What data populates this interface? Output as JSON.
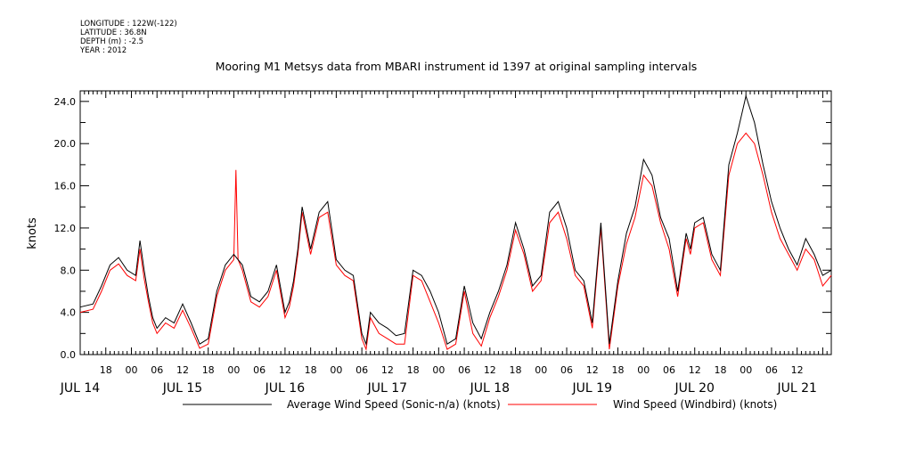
{
  "meta": {
    "longitude": "LONGITUDE : 122W(-122)",
    "latitude": "LATITUDE : 36.8N",
    "depth": "DEPTH (m) : -2.5",
    "year": "YEAR : 2012"
  },
  "colors": {
    "series1": "#000000",
    "series2": "#ff0000"
  },
  "chart_data": {
    "type": "line",
    "title": "Mooring M1 Metsys data from MBARI instrument id 1397 at original sampling intervals",
    "ylabel": "knots",
    "xlabel": "",
    "ylim": [
      0,
      25
    ],
    "xlim_hours": [
      12,
      188
    ],
    "grid": false,
    "legend_position": "bottom",
    "y_ticks": [
      "0.0",
      "4.0",
      "8.0",
      "12.0",
      "16.0",
      "20.0",
      "24.0"
    ],
    "x_hour_tick_labels": [
      "18",
      "00",
      "06",
      "12",
      "18",
      "00",
      "06",
      "12",
      "18",
      "00",
      "06",
      "12",
      "18",
      "00",
      "06",
      "12",
      "18",
      "00",
      "06",
      "12",
      "18",
      "00",
      "06",
      "12",
      "18",
      "00",
      "06",
      "12"
    ],
    "x_day_labels": [
      "JUL 14",
      "JUL 15",
      "JUL 16",
      "JUL 17",
      "JUL 18",
      "JUL 19",
      "JUL 20",
      "JUL 21"
    ],
    "series": [
      {
        "name": "Average Wind Speed (Sonic-n/a) (knots)",
        "x_hours": [
          12,
          15,
          17,
          19,
          21,
          23,
          25,
          26,
          27,
          28,
          29,
          30,
          32,
          34,
          36,
          38,
          40,
          42,
          44,
          46,
          48,
          50,
          52,
          54,
          56,
          58,
          60,
          61,
          62,
          63,
          64,
          66,
          68,
          70,
          72,
          74,
          76,
          78,
          79,
          80,
          82,
          84,
          86,
          88,
          90,
          92,
          94,
          96,
          98,
          100,
          102,
          104,
          106,
          108,
          110,
          112,
          114,
          116,
          118,
          120,
          122,
          124,
          126,
          128,
          130,
          132,
          134,
          136,
          138,
          140,
          142,
          144,
          146,
          148,
          150,
          152,
          154,
          155,
          156,
          158,
          160,
          162,
          164,
          166,
          168,
          170,
          172,
          174,
          176,
          178,
          180,
          182,
          184,
          186,
          188
        ],
        "y": [
          4.5,
          4.8,
          6.5,
          8.5,
          9.2,
          8.0,
          7.5,
          10.8,
          8.0,
          5.5,
          3.5,
          2.5,
          3.5,
          3.0,
          4.8,
          3.0,
          1.0,
          1.5,
          6.0,
          8.5,
          9.5,
          8.5,
          5.5,
          5.0,
          6.0,
          8.5,
          4.0,
          5.0,
          7.0,
          10.0,
          14.0,
          10.0,
          13.5,
          14.5,
          9.0,
          8.0,
          7.5,
          2.0,
          1.0,
          4.0,
          3.0,
          2.5,
          1.8,
          2.0,
          8.0,
          7.5,
          6.0,
          4.0,
          1.0,
          1.5,
          6.5,
          3.0,
          1.5,
          4.0,
          6.0,
          8.5,
          12.5,
          10.0,
          6.5,
          7.5,
          13.5,
          14.5,
          12.0,
          8.0,
          7.0,
          3.0,
          12.5,
          1.0,
          7.0,
          11.5,
          14.0,
          18.5,
          17.0,
          13.0,
          11.0,
          6.0,
          11.5,
          10.0,
          12.5,
          13.0,
          9.5,
          8.0,
          18.0,
          21.0,
          24.5,
          22.0,
          18.0,
          14.5,
          12.0,
          10.0,
          8.5,
          11.0,
          9.5,
          7.5,
          8.0
        ]
      },
      {
        "name": "Wind Speed (Windbird) (knots)",
        "x_hours": [
          12,
          15,
          17,
          19,
          21,
          23,
          25,
          26,
          27,
          28,
          29,
          30,
          32,
          34,
          36,
          38,
          40,
          42,
          44,
          46,
          48,
          48.5,
          49,
          50,
          52,
          54,
          56,
          58,
          60,
          61,
          62,
          63,
          64,
          66,
          68,
          70,
          72,
          74,
          76,
          78,
          79,
          80,
          82,
          84,
          86,
          88,
          90,
          92,
          94,
          96,
          98,
          100,
          102,
          104,
          106,
          108,
          110,
          112,
          114,
          116,
          118,
          120,
          122,
          124,
          126,
          128,
          130,
          132,
          134,
          136,
          138,
          140,
          142,
          144,
          146,
          148,
          150,
          152,
          154,
          155,
          156,
          158,
          160,
          162,
          164,
          166,
          168,
          170,
          172,
          174,
          176,
          178,
          180,
          182,
          184,
          186,
          188
        ],
        "y": [
          4.0,
          4.3,
          6.0,
          8.0,
          8.6,
          7.5,
          7.0,
          10.0,
          7.2,
          5.0,
          3.0,
          2.0,
          3.0,
          2.5,
          4.2,
          2.5,
          0.6,
          1.0,
          5.5,
          8.0,
          9.0,
          17.5,
          9.0,
          8.0,
          5.0,
          4.5,
          5.5,
          8.0,
          3.5,
          4.5,
          6.5,
          9.5,
          13.5,
          9.5,
          13.0,
          13.5,
          8.5,
          7.5,
          7.0,
          1.5,
          0.5,
          3.5,
          2.0,
          1.5,
          1.0,
          1.0,
          7.5,
          7.0,
          5.0,
          3.0,
          0.5,
          1.0,
          6.0,
          2.0,
          0.8,
          3.5,
          5.5,
          8.0,
          11.8,
          9.5,
          6.0,
          7.0,
          12.5,
          13.5,
          11.0,
          7.5,
          6.5,
          2.5,
          12.0,
          0.5,
          6.5,
          10.5,
          13.0,
          17.0,
          16.0,
          12.5,
          10.0,
          5.5,
          11.0,
          9.5,
          12.0,
          12.5,
          9.0,
          7.5,
          17.0,
          20.0,
          21.0,
          20.0,
          17.0,
          13.5,
          11.0,
          9.5,
          8.0,
          10.0,
          9.0,
          6.5,
          7.5
        ]
      }
    ]
  }
}
